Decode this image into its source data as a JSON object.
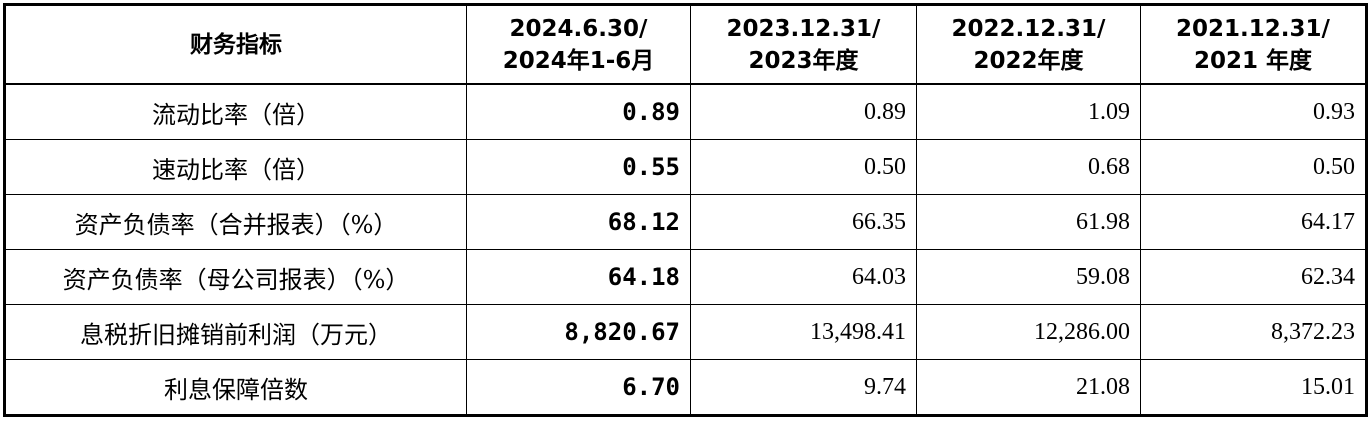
{
  "table": {
    "headers": [
      [
        "财务指标"
      ],
      [
        "2024.6.30/",
        "2024年1-6月"
      ],
      [
        "2023.12.31/",
        "2023年度"
      ],
      [
        "2022.12.31/",
        "2022年度"
      ],
      [
        "2021.12.31/",
        "2021 年度"
      ]
    ],
    "rows": [
      {
        "label": "流动比率（倍）",
        "values": [
          "0.89",
          "0.89",
          "1.09",
          "0.93"
        ]
      },
      {
        "label": "速动比率（倍）",
        "values": [
          "0.55",
          "0.50",
          "0.68",
          "0.50"
        ]
      },
      {
        "label": "资产负债率（合并报表）（%）",
        "values": [
          "68.12",
          "66.35",
          "61.98",
          "64.17"
        ]
      },
      {
        "label": "资产负债率（母公司报表）（%）",
        "values": [
          "64.18",
          "64.03",
          "59.08",
          "62.34"
        ]
      },
      {
        "label": "息税折旧摊销前利润（万元）",
        "values": [
          "8,820.67",
          "13,498.41",
          "12,286.00",
          "8,372.23"
        ]
      },
      {
        "label": "利息保障倍数",
        "values": [
          "6.70",
          "9.74",
          "21.08",
          "15.01"
        ]
      }
    ]
  }
}
